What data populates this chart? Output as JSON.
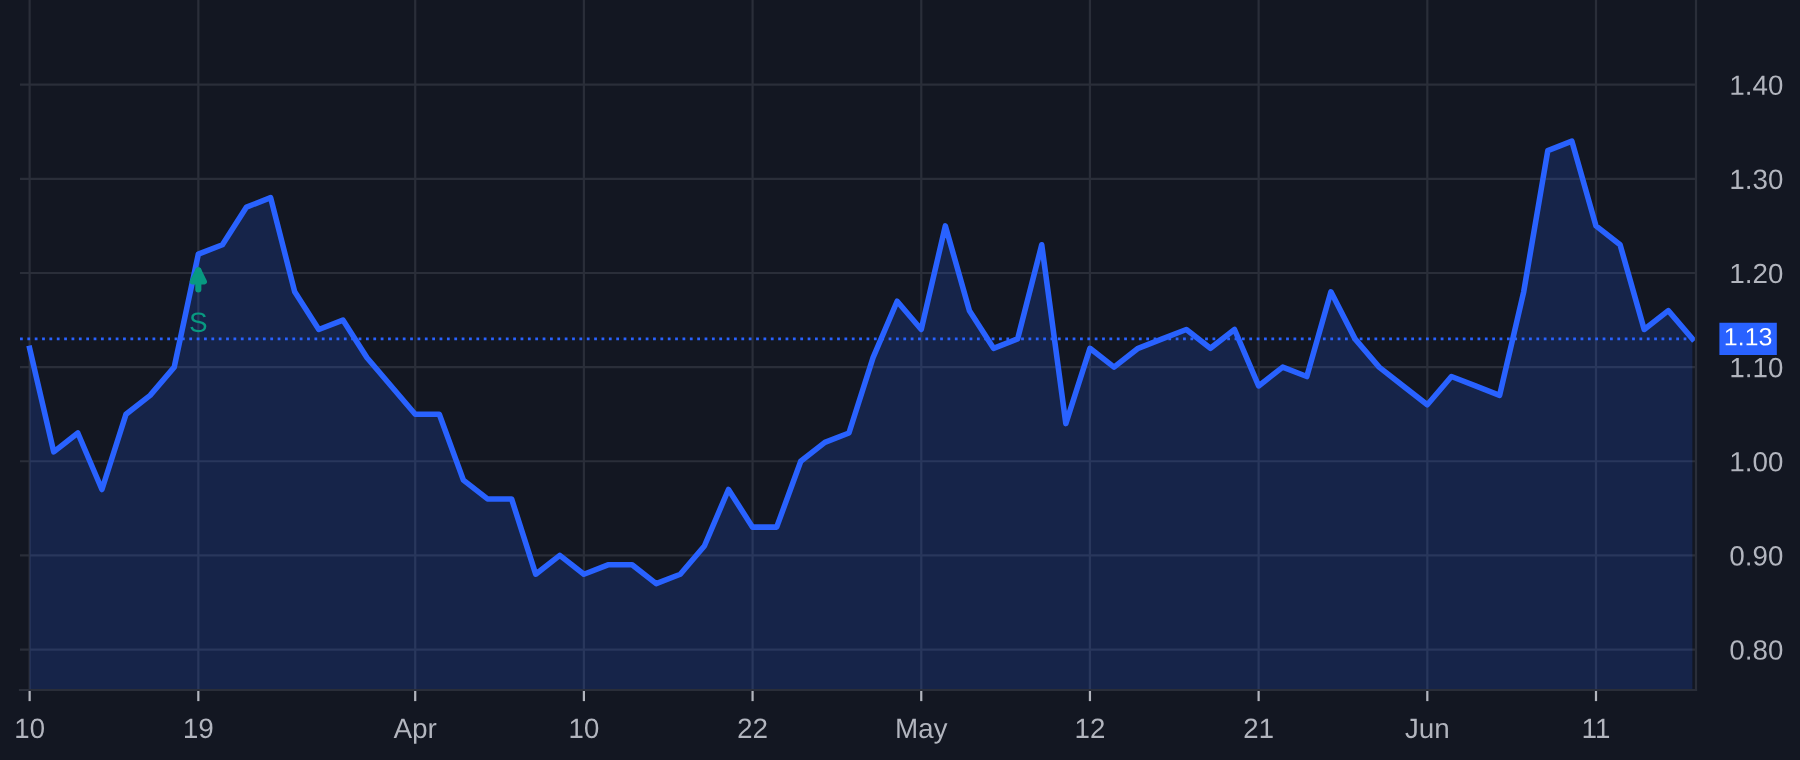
{
  "chart_data": {
    "type": "area",
    "categories": [
      "10",
      null,
      null,
      null,
      null,
      null,
      null,
      "19",
      null,
      null,
      null,
      null,
      null,
      null,
      null,
      null,
      "Apr",
      null,
      null,
      null,
      null,
      null,
      null,
      "10",
      null,
      null,
      null,
      null,
      null,
      null,
      "22",
      null,
      null,
      null,
      null,
      null,
      null,
      "May",
      null,
      null,
      null,
      null,
      null,
      null,
      "12",
      null,
      null,
      null,
      null,
      null,
      null,
      "21",
      null,
      null,
      null,
      null,
      null,
      null,
      "Jun",
      null,
      null,
      null,
      null,
      null,
      null,
      "11",
      null,
      null,
      null,
      null
    ],
    "series": [
      {
        "color": "#2962ff",
        "values": [
          1.12,
          1.01,
          1.03,
          0.97,
          1.05,
          1.07,
          1.1,
          1.22,
          1.23,
          1.27,
          1.28,
          1.18,
          1.14,
          1.15,
          1.11,
          1.08,
          1.05,
          1.05,
          0.98,
          0.96,
          0.96,
          0.88,
          0.9,
          0.88,
          0.89,
          0.89,
          0.87,
          0.88,
          0.91,
          0.97,
          0.93,
          0.93,
          1.0,
          1.02,
          1.03,
          1.11,
          1.17,
          1.14,
          1.25,
          1.16,
          1.12,
          1.13,
          1.23,
          1.04,
          1.12,
          1.1,
          1.12,
          1.13,
          1.14,
          1.12,
          1.14,
          1.08,
          1.1,
          1.09,
          1.18,
          1.13,
          1.1,
          1.08,
          1.06,
          1.09,
          1.08,
          1.07,
          1.18,
          1.33,
          1.34,
          1.25,
          1.23,
          1.14,
          1.16,
          1.13
        ]
      }
    ],
    "ylim": [
      0.757,
      1.49
    ],
    "yticks": [
      {
        "value": 0.8,
        "label": "0.80"
      },
      {
        "value": 0.9,
        "label": "0.90"
      },
      {
        "value": 1.0,
        "label": "1.00"
      },
      {
        "value": 1.1,
        "label": "1.10"
      },
      {
        "value": 1.2,
        "label": "1.20"
      },
      {
        "value": 1.3,
        "label": "1.30"
      },
      {
        "value": 1.4,
        "label": "1.40"
      }
    ],
    "ref_lines": [
      {
        "axis": "y",
        "value": 1.13,
        "label": "1.13",
        "color": "#2962ff",
        "line_style": "dotted"
      }
    ],
    "annotations": [
      {
        "text": "S",
        "x": "19",
        "y": 1.21
      }
    ],
    "grid": true,
    "legend": false
  }
}
